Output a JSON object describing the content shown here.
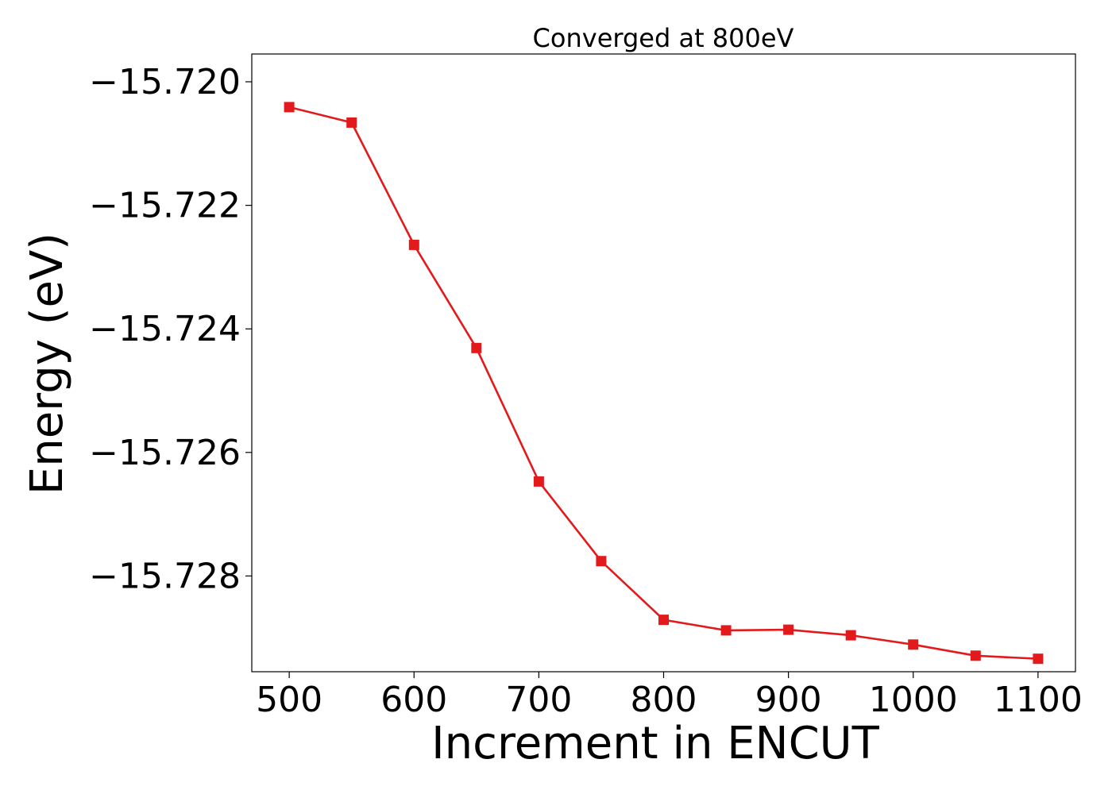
{
  "chart_data": {
    "type": "line",
    "title": "Converged at 800eV",
    "xlabel": "Increment in ENCUT",
    "ylabel": "Energy (eV)",
    "xlim": [
      470,
      1130
    ],
    "ylim": [
      -15.72955,
      -15.71955
    ],
    "x_ticks": [
      500,
      600,
      700,
      800,
      900,
      1000,
      1100
    ],
    "x_tick_labels": [
      "500",
      "600",
      "700",
      "800",
      "900",
      "1000",
      "1100"
    ],
    "y_ticks": [
      -15.72,
      -15.722,
      -15.724,
      -15.726,
      -15.728
    ],
    "y_tick_labels": [
      "−15.720",
      "−15.722",
      "−15.724",
      "−15.726",
      "−15.728"
    ],
    "grid": false,
    "series": [
      {
        "color": "#e31a1c",
        "marker": "square",
        "x": [
          500,
          550,
          600,
          650,
          700,
          750,
          800,
          850,
          900,
          950,
          1000,
          1050,
          1100
        ],
        "y": [
          -15.72041,
          -15.72066,
          -15.72264,
          -15.72431,
          -15.72647,
          -15.72776,
          -15.72871,
          -15.72888,
          -15.72887,
          -15.72896,
          -15.72911,
          -15.72929,
          -15.72934
        ]
      }
    ]
  }
}
